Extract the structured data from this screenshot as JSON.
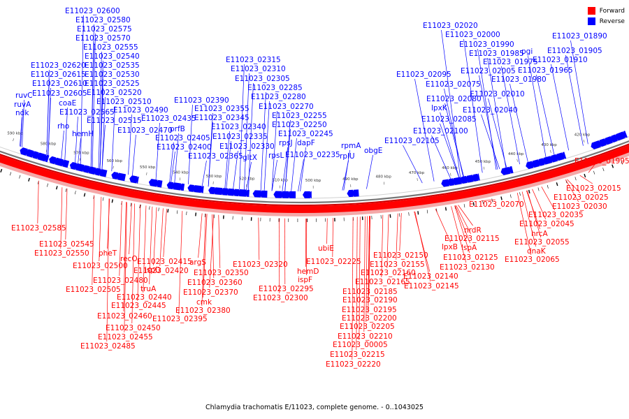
{
  "caption": "Chlamydia trachomatis E/11023, complete genome. - 0..1043025",
  "legend": [
    {
      "label": "Forward",
      "color": "#ff0000"
    },
    {
      "label": "Reverse",
      "color": "#0000ff"
    }
  ],
  "colors": {
    "forward": "#ff0000",
    "forward_dark": "#cc0000",
    "reverse": "#0000ff",
    "backbone": "#777777",
    "tick": "#000000"
  },
  "ticks": [
    "590 kbp",
    "580 kbp",
    "570 kbp",
    "560 kbp",
    "550 kbp",
    "540 kbp",
    "530 kbp",
    "520 kbp",
    "510 kbp",
    "500 kbp",
    "490 kbp",
    "480 kbp",
    "470 kbp",
    "460 kbp",
    "450 kbp",
    "440 kbp",
    "430 kbp",
    "420 kbp"
  ],
  "reverse_labels": [
    "E11023_02600",
    "E11023_02580",
    "E11023_02575",
    "E11023_02570",
    "E11023_02555",
    "E11023_02540",
    "E11023_02535",
    "E11023_02530",
    "E11023_02525",
    "E11023_02520",
    "E11023_02510",
    "E11023_02515",
    "E11023_02490",
    "E11023_02470",
    "E11023_02620",
    "E11023_02615",
    "E11023_02610",
    "E11023_02605",
    "ruvC",
    "ruvA",
    "ndk",
    "coaE",
    "rho",
    "E11023_02565",
    "hemH",
    "E11023_02435",
    "prfB",
    "E11023_02405",
    "E11023_02400",
    "E11023_02390",
    "E11023_02355",
    "E11023_02345",
    "E11023_02340",
    "E11023_02335",
    "E11023_02330",
    "E11023_02365",
    "gltX",
    "E11023_02315",
    "E11023_02310",
    "E11023_02305",
    "E11023_02285",
    "E11023_02280",
    "E11023_02270",
    "E11023_02255",
    "E11023_02250",
    "E11023_02245",
    "rpsJ",
    "dapF",
    "rpsL",
    "E11023_02235",
    "rpmA",
    "rplU",
    "obgE",
    "E11023_02095",
    "E11023_02075",
    "E11023_02080",
    "lpxK",
    "E11023_02085",
    "E11023_02100",
    "E11023_02105",
    "E11023_02020",
    "E11023_02000",
    "E11023_01990",
    "E11023_01985",
    "E11023_01975",
    "E11023_02005",
    "E11023_01980",
    "E11023_02010",
    "E11023_02040",
    "pgi",
    "E11023_01965",
    "E11023_01890",
    "E11023_01905",
    "E11023_01910"
  ],
  "forward_labels": [
    "E11023_02585",
    "E11023_02545",
    "E11023_02550",
    "pheT",
    "E11023_02500",
    "recO",
    "E11023_02480",
    "E11023_02505",
    "ispD",
    "truA",
    "E11023_02440",
    "E11023_02445",
    "E11023_02460",
    "E11023_02450",
    "E11023_02455",
    "E11023_02485",
    "E11023_02415",
    "E11023_02420",
    "argS",
    "E11023_02350",
    "E11023_02360",
    "E11023_02370",
    "cmk",
    "E11023_02380",
    "E11023_02395",
    "E11023_02320",
    "hemD",
    "ispF",
    "E11023_02295",
    "E11023_02300",
    "ubiE",
    "E11023_02225",
    "E11023_02150",
    "E11023_02155",
    "E11023_02160",
    "E11023_02165",
    "E11023_02185",
    "E11023_02190",
    "E11023_02195",
    "E11023_02200",
    "E11023_02205",
    "E11023_02210",
    "E11023_00005",
    "E11023_02215",
    "E11023_02220",
    "E11023_02140",
    "E11023_02145",
    "nrdR",
    "E11023_02115",
    "lpxB",
    "lspA",
    "E11023_02125",
    "E11023_02130",
    "E11023_02070",
    "E11023_02035",
    "E11023_02045",
    "hrcA",
    "E11023_02055",
    "dnaK",
    "E11023_02065",
    "E11023_02015",
    "E11023_02025",
    "E11023_02030",
    "E11023_01995"
  ]
}
